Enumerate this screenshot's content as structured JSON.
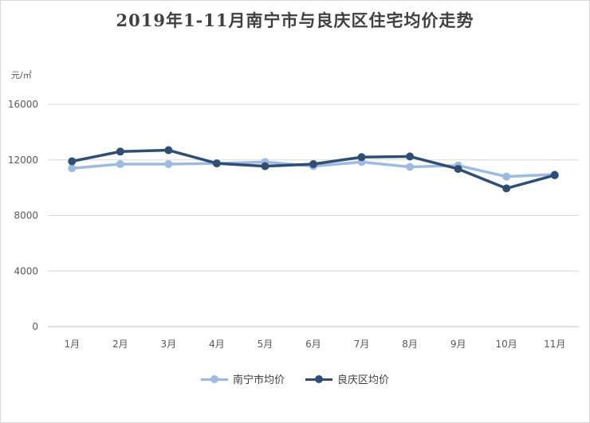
{
  "chart_data": {
    "type": "line",
    "title": "2019年1-11月南宁市与良庆区住宅均价走势",
    "unit_label": "元/㎡",
    "categories": [
      "1月",
      "2月",
      "3月",
      "4月",
      "5月",
      "6月",
      "7月",
      "8月",
      "9月",
      "10月",
      "11月"
    ],
    "ylim": [
      0,
      16000
    ],
    "yticks": [
      0,
      4000,
      8000,
      12000,
      16000
    ],
    "grid": true,
    "legend_position": "bottom",
    "series": [
      {
        "name": "南宁市均价",
        "color": "#9dbbe1",
        "values": [
          11400,
          11700,
          11700,
          11750,
          11850,
          11550,
          11850,
          11500,
          11600,
          10800,
          10950
        ]
      },
      {
        "name": "良庆区均价",
        "color": "#2e4f73",
        "values": [
          11900,
          12600,
          12700,
          11750,
          11550,
          11700,
          12200,
          12250,
          11350,
          9950,
          10900
        ]
      }
    ]
  }
}
